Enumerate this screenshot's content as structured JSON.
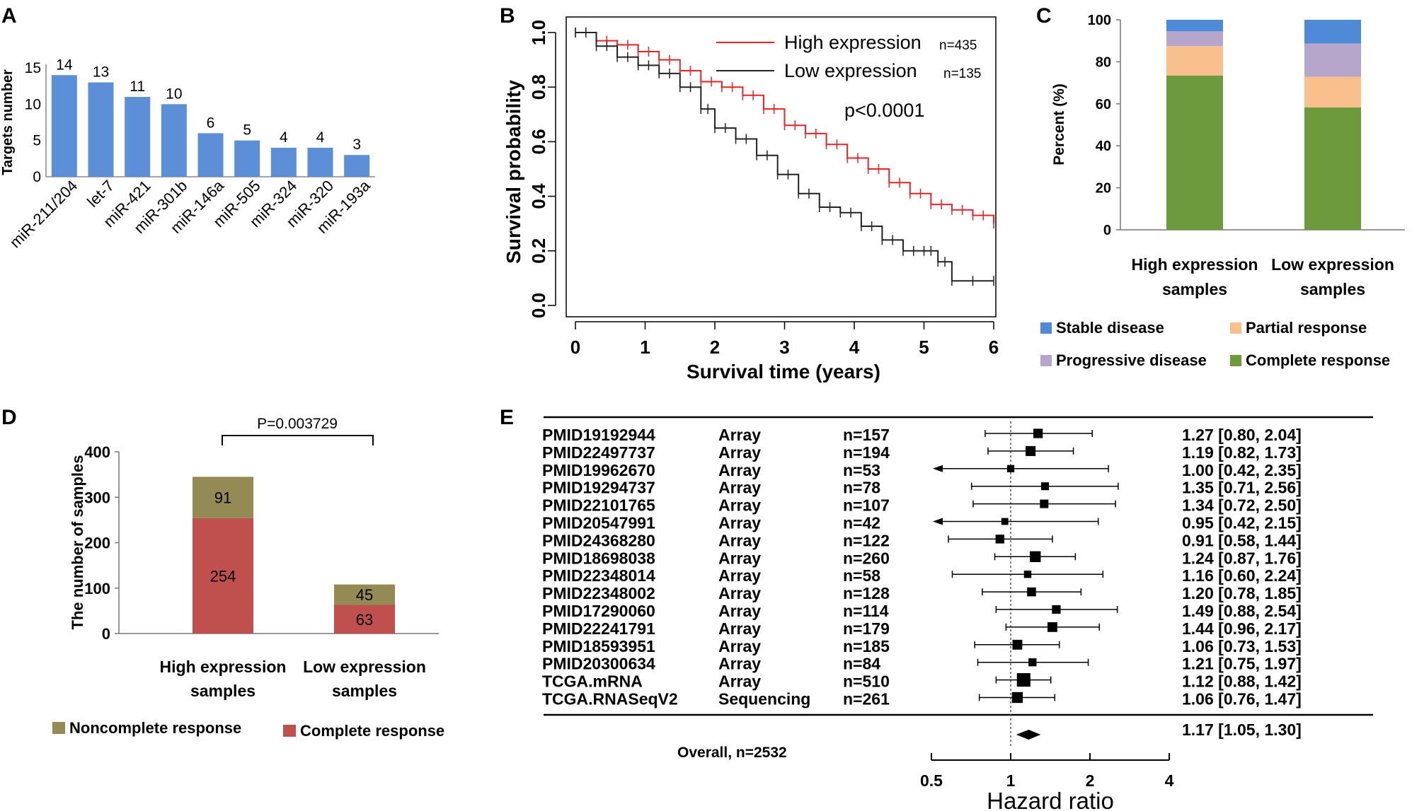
{
  "panel_labels": {
    "a": "A",
    "b": "B",
    "c": "C",
    "d": "D",
    "e": "E"
  },
  "chart_data": [
    {
      "panel": "A",
      "type": "bar",
      "title": "",
      "ylabel": "Targets number",
      "ylim": [
        0,
        15
      ],
      "yticks": [
        "0",
        "5",
        "10",
        "15"
      ],
      "categories": [
        "miR-211/204",
        "let-7",
        "miR-421",
        "miR-301b",
        "miR-146a",
        "miR-505",
        "miR-324",
        "miR-320",
        "miR-193a"
      ],
      "values": [
        14,
        13,
        11,
        10,
        6,
        5,
        4,
        4,
        3
      ],
      "data_labels": [
        "14",
        "13",
        "11",
        "10",
        "6",
        "5",
        "4",
        "4",
        "3"
      ],
      "color": "#5b8fd8",
      "grid": false
    },
    {
      "panel": "B",
      "type": "line",
      "xlabel": "Survival time (years)",
      "ylabel": "Survival probability",
      "xlim": [
        0,
        6
      ],
      "ylim": [
        0,
        1
      ],
      "xticks": [
        "0",
        "1",
        "2",
        "3",
        "4",
        "5",
        "6"
      ],
      "yticks": [
        "0.0",
        "0.2",
        "0.4",
        "0.6",
        "0.8",
        "1.0"
      ],
      "annotation": "p<0.0001",
      "legend_position": "top-right",
      "series": [
        {
          "label": "High expression",
          "n_text": "n=435",
          "color": "#ee2222",
          "x": [
            0,
            0.3,
            0.6,
            0.9,
            1.2,
            1.5,
            1.8,
            2.1,
            2.4,
            2.7,
            3.0,
            3.3,
            3.6,
            3.9,
            4.2,
            4.5,
            4.8,
            5.1,
            5.4,
            5.7,
            6.0
          ],
          "y": [
            1.0,
            0.97,
            0.955,
            0.93,
            0.9,
            0.86,
            0.82,
            0.8,
            0.77,
            0.72,
            0.66,
            0.63,
            0.59,
            0.54,
            0.5,
            0.45,
            0.41,
            0.37,
            0.35,
            0.33,
            0.3
          ]
        },
        {
          "label": "Low expression",
          "n_text": "n=135",
          "color": "#222222",
          "x": [
            0,
            0.3,
            0.6,
            0.9,
            1.2,
            1.5,
            1.8,
            2.0,
            2.3,
            2.6,
            2.9,
            3.2,
            3.5,
            3.8,
            4.1,
            4.4,
            4.7,
            5.0,
            5.2,
            5.4,
            6.0
          ],
          "y": [
            1.0,
            0.95,
            0.91,
            0.88,
            0.85,
            0.8,
            0.72,
            0.65,
            0.61,
            0.55,
            0.48,
            0.41,
            0.36,
            0.34,
            0.29,
            0.24,
            0.2,
            0.2,
            0.16,
            0.09,
            0.09
          ]
        }
      ]
    },
    {
      "panel": "C",
      "type": "bar",
      "stacked": true,
      "ylabel": "Percent (%)",
      "ylim": [
        0,
        100
      ],
      "yticks": [
        "0",
        "20",
        "40",
        "60",
        "80",
        "100"
      ],
      "categories": [
        [
          "High expression",
          "samples"
        ],
        [
          "Low expression",
          "samples"
        ]
      ],
      "series": [
        {
          "name": "Complete response",
          "color": "#6c9a3c",
          "values": [
            73.5,
            58.3
          ]
        },
        {
          "name": "Partial response",
          "color": "#f9c08e",
          "values": [
            14,
            14.6
          ]
        },
        {
          "name": "Progressive disease",
          "color": "#b5a6cc",
          "values": [
            7,
            15.8
          ]
        },
        {
          "name": "Stable disease",
          "color": "#4f8ad6",
          "values": [
            5.5,
            11.3
          ]
        }
      ],
      "legend_position": "bottom"
    },
    {
      "panel": "D",
      "type": "bar",
      "stacked": true,
      "ylabel": "The number of samples",
      "ylim": [
        0,
        400
      ],
      "yticks": [
        "0",
        "100",
        "200",
        "300",
        "400"
      ],
      "categories": [
        [
          "High expression",
          "samples"
        ],
        [
          "Low expression",
          "samples"
        ]
      ],
      "series": [
        {
          "name": "Complete response",
          "color": "#c0504d",
          "values": [
            254,
            63
          ],
          "labels": [
            "254",
            "63"
          ]
        },
        {
          "name": "Noncomplete response",
          "color": "#948a54",
          "values": [
            91,
            45
          ],
          "labels": [
            "91",
            "45"
          ]
        }
      ],
      "annotation": "P=0.003729",
      "legend_position": "bottom"
    },
    {
      "panel": "E",
      "type": "forest",
      "xlabel": "Hazard ratio",
      "xscale": "log",
      "xlim": [
        0.5,
        4
      ],
      "xticks": [
        "0.5",
        "1",
        "2",
        "4"
      ],
      "reference_line": 1,
      "studies": [
        {
          "study": "PMID19192944",
          "platform": "Array",
          "n": "n=157",
          "hr": 1.27,
          "lo": 0.8,
          "hi": 2.04,
          "ci_text": "1.27 [0.80, 2.04]"
        },
        {
          "study": "PMID22497737",
          "platform": "Array",
          "n": "n=194",
          "hr": 1.19,
          "lo": 0.82,
          "hi": 1.73,
          "ci_text": "1.19 [0.82, 1.73]"
        },
        {
          "study": "PMID19962670",
          "platform": "Array",
          "n": "n=53",
          "hr": 1.0,
          "lo": 0.42,
          "hi": 2.35,
          "ci_text": "1.00 [0.42, 2.35]"
        },
        {
          "study": "PMID19294737",
          "platform": "Array",
          "n": "n=78",
          "hr": 1.35,
          "lo": 0.71,
          "hi": 2.56,
          "ci_text": "1.35 [0.71, 2.56]"
        },
        {
          "study": "PMID22101765",
          "platform": "Array",
          "n": "n=107",
          "hr": 1.34,
          "lo": 0.72,
          "hi": 2.5,
          "ci_text": "1.34 [0.72, 2.50]"
        },
        {
          "study": "PMID20547991",
          "platform": "Array",
          "n": "n=42",
          "hr": 0.95,
          "lo": 0.42,
          "hi": 2.15,
          "ci_text": "0.95 [0.42, 2.15]"
        },
        {
          "study": "PMID24368280",
          "platform": "Array",
          "n": "n=122",
          "hr": 0.91,
          "lo": 0.58,
          "hi": 1.44,
          "ci_text": "0.91 [0.58, 1.44]"
        },
        {
          "study": "PMID18698038",
          "platform": "Array",
          "n": "n=260",
          "hr": 1.24,
          "lo": 0.87,
          "hi": 1.76,
          "ci_text": "1.24 [0.87, 1.76]"
        },
        {
          "study": "PMID22348014",
          "platform": "Array",
          "n": "n=58",
          "hr": 1.16,
          "lo": 0.6,
          "hi": 2.24,
          "ci_text": "1.16 [0.60, 2.24]"
        },
        {
          "study": "PMID22348002",
          "platform": "Array",
          "n": "n=128",
          "hr": 1.2,
          "lo": 0.78,
          "hi": 1.85,
          "ci_text": "1.20 [0.78, 1.85]"
        },
        {
          "study": "PMID17290060",
          "platform": "Array",
          "n": "n=114",
          "hr": 1.49,
          "lo": 0.88,
          "hi": 2.54,
          "ci_text": "1.49 [0.88, 2.54]"
        },
        {
          "study": "PMID22241791",
          "platform": "Array",
          "n": "n=179",
          "hr": 1.44,
          "lo": 0.96,
          "hi": 2.17,
          "ci_text": "1.44 [0.96, 2.17]"
        },
        {
          "study": "PMID18593951",
          "platform": "Array",
          "n": "n=185",
          "hr": 1.06,
          "lo": 0.73,
          "hi": 1.53,
          "ci_text": "1.06 [0.73, 1.53]"
        },
        {
          "study": "PMID20300634",
          "platform": "Array",
          "n": "n=84",
          "hr": 1.21,
          "lo": 0.75,
          "hi": 1.97,
          "ci_text": "1.21 [0.75, 1.97]"
        },
        {
          "study": "TCGA.mRNA",
          "platform": "Array",
          "n": "n=510",
          "hr": 1.12,
          "lo": 0.88,
          "hi": 1.42,
          "ci_text": "1.12 [0.88, 1.42]"
        },
        {
          "study": "TCGA.RNASeqV2",
          "platform": "Sequencing",
          "n": "n=261",
          "hr": 1.06,
          "lo": 0.76,
          "hi": 1.47,
          "ci_text": "1.06 [0.76, 1.47]"
        }
      ],
      "overall": {
        "label": "Overall, n=2532",
        "hr": 1.17,
        "lo": 1.05,
        "hi": 1.3,
        "ci_text": "1.17 [1.05, 1.30]"
      }
    }
  ]
}
